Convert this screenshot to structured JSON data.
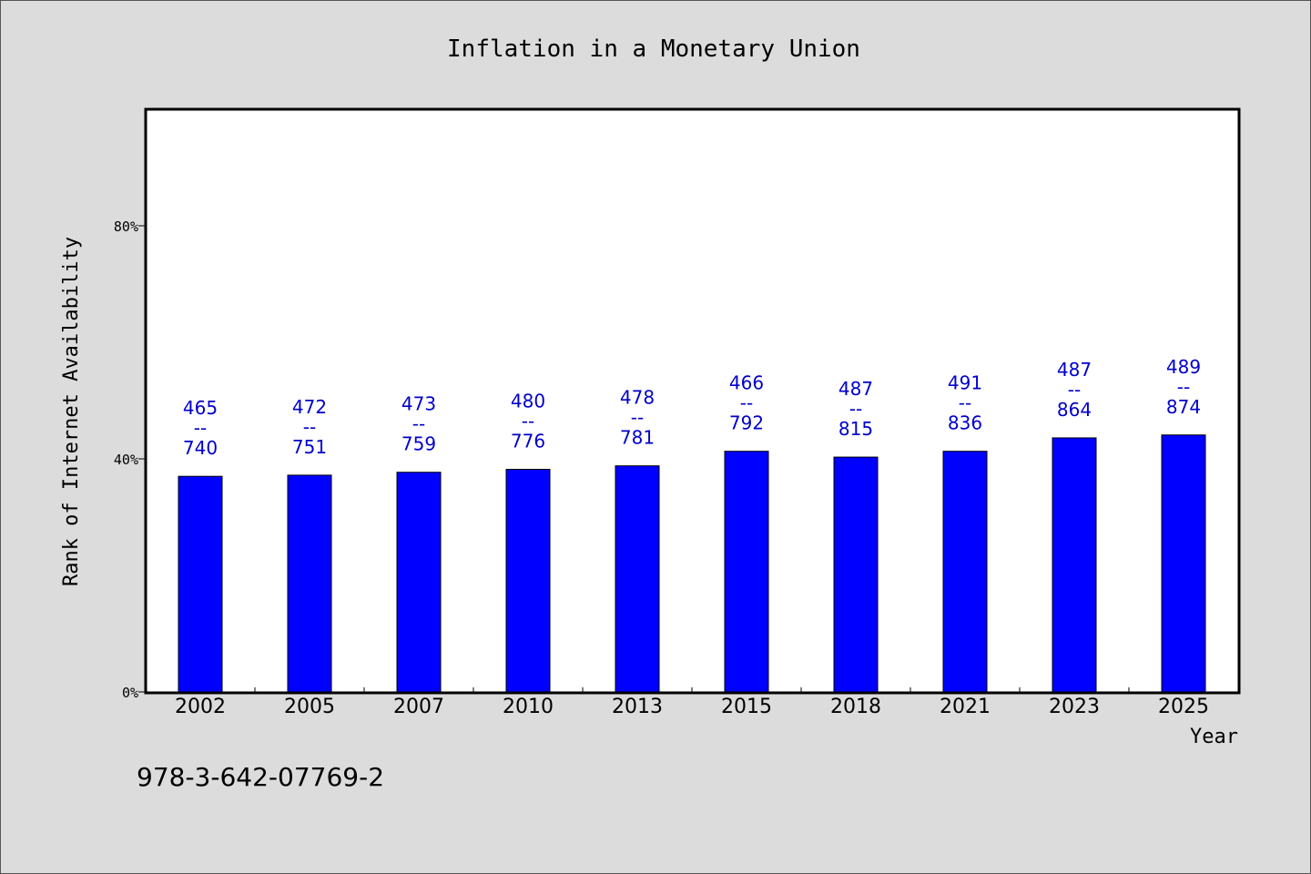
{
  "chart_data": {
    "type": "bar",
    "title": "Inflation in a Monetary Union",
    "xlabel": "Year",
    "ylabel": "Rank of Internet Availability",
    "categories": [
      "2002",
      "2005",
      "2007",
      "2010",
      "2013",
      "2015",
      "2018",
      "2021",
      "2023",
      "2025"
    ],
    "values": [
      37.0,
      37.2,
      37.7,
      38.2,
      38.8,
      41.3,
      40.3,
      41.3,
      43.6,
      44.1
    ],
    "bar_labels": [
      {
        "top": "465",
        "sep": "--",
        "bottom": "740"
      },
      {
        "top": "472",
        "sep": "--",
        "bottom": "751"
      },
      {
        "top": "473",
        "sep": "--",
        "bottom": "759"
      },
      {
        "top": "480",
        "sep": "--",
        "bottom": "776"
      },
      {
        "top": "478",
        "sep": "--",
        "bottom": "781"
      },
      {
        "top": "466",
        "sep": "--",
        "bottom": "792"
      },
      {
        "top": "487",
        "sep": "--",
        "bottom": "815"
      },
      {
        "top": "491",
        "sep": "--",
        "bottom": "836"
      },
      {
        "top": "487",
        "sep": "--",
        "bottom": "864"
      },
      {
        "top": "489",
        "sep": "--",
        "bottom": "874"
      }
    ],
    "yticks": [
      {
        "value": 0,
        "label": "0%"
      },
      {
        "value": 40,
        "label": "40%"
      },
      {
        "value": 80,
        "label": "80%"
      }
    ],
    "ylim": [
      0,
      100
    ],
    "grid": false,
    "legend": "none",
    "colors": {
      "bar": "#0000ff",
      "bar_edge": "#000000",
      "label": "#0000cc",
      "background": "#dcdcdc",
      "plot_background": "#ffffff"
    }
  },
  "footer_text": "978-3-642-07769-2"
}
